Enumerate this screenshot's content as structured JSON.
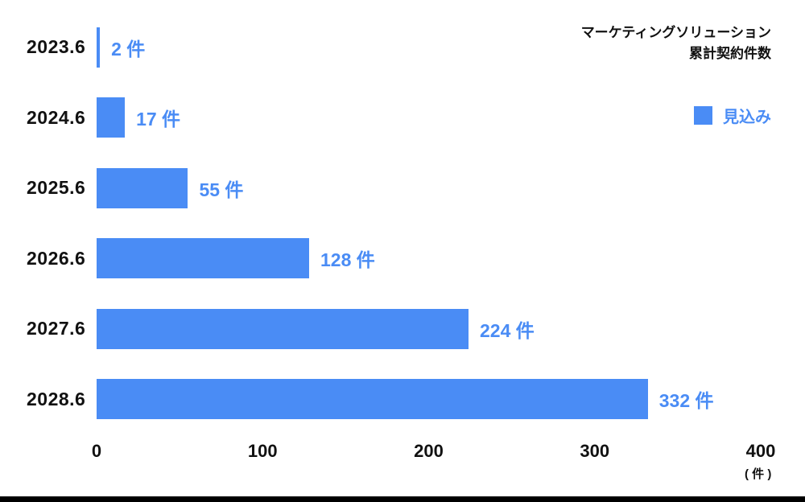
{
  "header": {
    "title_line1": "マーケティングソリューション",
    "title_line2": "累計契約件数"
  },
  "legend": {
    "label": "見込み"
  },
  "chart_data": {
    "type": "bar",
    "orientation": "horizontal",
    "title": "マーケティングソリューション 累計契約件数",
    "categories": [
      "2023.6",
      "2024.6",
      "2025.6",
      "2026.6",
      "2027.6",
      "2028.6"
    ],
    "values": [
      2,
      17,
      55,
      128,
      224,
      332
    ],
    "value_labels": [
      "2 件",
      "17 件",
      "55 件",
      "128 件",
      "224 件",
      "332 件"
    ],
    "xlim": [
      0,
      400
    ],
    "ticks": [
      "0",
      "100",
      "200",
      "300",
      "400"
    ],
    "tick_values": [
      0,
      100,
      200,
      300,
      400
    ],
    "unit_label": "( 件 )",
    "legend": [
      "見込み"
    ],
    "legend_position": "top-right",
    "grid": false,
    "bar_color": "#4a8cf5",
    "label_color": "#111111"
  }
}
